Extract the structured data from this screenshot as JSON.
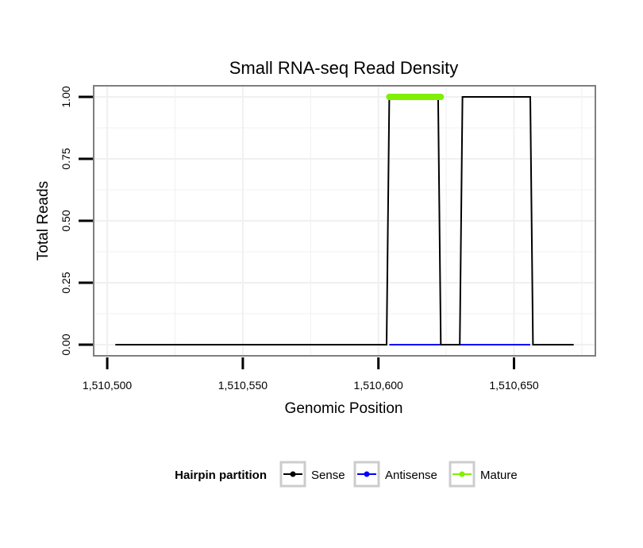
{
  "colors": {
    "sense": "#000000",
    "antisense": "#0000ff",
    "mature": "#7ff000",
    "panel_border": "#7f7f7f",
    "gridline": "#f0f0f0"
  },
  "legend": {
    "title": "Hairpin partition",
    "entries": [
      {
        "label": "Sense",
        "color": "#000000"
      },
      {
        "label": "Antisense",
        "color": "#0000ff"
      },
      {
        "label": "Mature",
        "color": "#7ff000"
      }
    ]
  },
  "chart_data": {
    "type": "line",
    "title": "Small RNA-seq Read Density",
    "xlabel": "Genomic Position",
    "ylabel": "Total Reads",
    "xlim": [
      1510495,
      1510680
    ],
    "ylim": [
      -0.045,
      1.045
    ],
    "x_ticks": [
      1510500,
      1510550,
      1510600,
      1510650
    ],
    "x_tick_labels": [
      "1,510,500",
      "1,510,550",
      "1,510,600",
      "1,510,650"
    ],
    "y_ticks": [
      0,
      0.25,
      0.5,
      0.75,
      1
    ],
    "y_tick_labels": [
      "0.00",
      "0.25",
      "0.50",
      "0.75",
      "1.00"
    ],
    "grid": true,
    "legend_position": "bottom",
    "series": [
      {
        "name": "Sense",
        "color": "#000000",
        "points": [
          [
            1510503,
            0
          ],
          [
            1510603,
            0
          ],
          [
            1510604,
            1
          ],
          [
            1510622,
            1
          ],
          [
            1510623,
            0
          ],
          [
            1510630,
            0
          ],
          [
            1510631,
            1
          ],
          [
            1510656,
            1
          ],
          [
            1510657,
            0
          ],
          [
            1510672,
            0
          ]
        ]
      },
      {
        "name": "Antisense",
        "color": "#0000ff",
        "points": [
          [
            1510604,
            0
          ],
          [
            1510656,
            0
          ]
        ]
      },
      {
        "name": "Mature",
        "color": "#7ff000",
        "points": [
          [
            1510604,
            1
          ],
          [
            1510623,
            1
          ]
        ]
      }
    ]
  }
}
